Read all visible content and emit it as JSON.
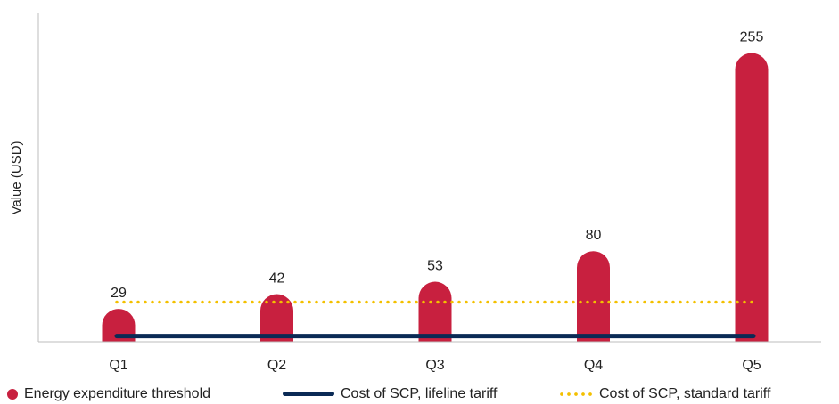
{
  "chart_data": {
    "type": "bar",
    "ylabel": "Value (USD)",
    "xlabel": "",
    "categories": [
      "Q1",
      "Q2",
      "Q3",
      "Q4",
      "Q5"
    ],
    "ylim": [
      0,
      290
    ],
    "grid": false,
    "legend_position": "bottom",
    "series": [
      {
        "name": "Energy expenditure threshold",
        "type": "bar",
        "values": [
          29,
          42,
          53,
          80,
          255
        ],
        "color": "#c8203f",
        "data_labels": true
      },
      {
        "name": "Cost of SCP, lifeline tariff",
        "type": "line",
        "style": "solid",
        "values": [
          5,
          5,
          5,
          5,
          5
        ],
        "color": "#0a2a55"
      },
      {
        "name": "Cost of SCP, standard tariff",
        "type": "line",
        "style": "dotted",
        "values": [
          35,
          35,
          35,
          35,
          35
        ],
        "color": "#f3c000"
      }
    ]
  }
}
